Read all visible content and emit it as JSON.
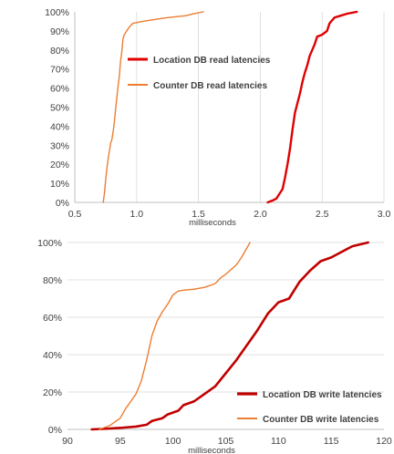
{
  "chart_data": [
    {
      "type": "line",
      "subtype": "cdf",
      "xlabel": "milliseconds",
      "ylabel": "",
      "xlim": [
        0.5,
        3.0
      ],
      "ylim": [
        0,
        1
      ],
      "x_ticks": [
        "0.5",
        "1.0",
        "1.5",
        "2.0",
        "2.5",
        "3.0"
      ],
      "y_ticks": [
        "0%",
        "10%",
        "20%",
        "30%",
        "40%",
        "50%",
        "60%",
        "70%",
        "80%",
        "90%",
        "100%"
      ],
      "grid": "vertical",
      "legend_position": "center",
      "series": [
        {
          "name": "Location DB read latencies",
          "color": "#e00000",
          "stroke_width": 2.4,
          "points": [
            [
              2.06,
              0.0
            ],
            [
              2.1,
              0.01
            ],
            [
              2.13,
              0.02
            ],
            [
              2.15,
              0.04
            ],
            [
              2.18,
              0.07
            ],
            [
              2.2,
              0.13
            ],
            [
              2.22,
              0.2
            ],
            [
              2.24,
              0.28
            ],
            [
              2.26,
              0.38
            ],
            [
              2.28,
              0.47
            ],
            [
              2.3,
              0.52
            ],
            [
              2.32,
              0.57
            ],
            [
              2.34,
              0.63
            ],
            [
              2.36,
              0.68
            ],
            [
              2.38,
              0.72
            ],
            [
              2.4,
              0.77
            ],
            [
              2.42,
              0.8
            ],
            [
              2.44,
              0.83
            ],
            [
              2.46,
              0.87
            ],
            [
              2.5,
              0.88
            ],
            [
              2.52,
              0.89
            ],
            [
              2.54,
              0.9
            ],
            [
              2.56,
              0.94
            ],
            [
              2.6,
              0.97
            ],
            [
              2.65,
              0.98
            ],
            [
              2.7,
              0.99
            ],
            [
              2.78,
              1.0
            ]
          ]
        },
        {
          "name": "Counter DB read latencies",
          "color": "#ed7d31",
          "stroke_width": 1.4,
          "points": [
            [
              0.73,
              0.0
            ],
            [
              0.74,
              0.05
            ],
            [
              0.75,
              0.12
            ],
            [
              0.76,
              0.18
            ],
            [
              0.77,
              0.23
            ],
            [
              0.78,
              0.27
            ],
            [
              0.79,
              0.31
            ],
            [
              0.8,
              0.33
            ],
            [
              0.81,
              0.37
            ],
            [
              0.82,
              0.42
            ],
            [
              0.83,
              0.49
            ],
            [
              0.84,
              0.55
            ],
            [
              0.85,
              0.61
            ],
            [
              0.86,
              0.66
            ],
            [
              0.87,
              0.74
            ],
            [
              0.88,
              0.79
            ],
            [
              0.89,
              0.86
            ],
            [
              0.9,
              0.88
            ],
            [
              0.92,
              0.9
            ],
            [
              0.94,
              0.92
            ],
            [
              0.97,
              0.94
            ],
            [
              1.05,
              0.95
            ],
            [
              1.15,
              0.96
            ],
            [
              1.25,
              0.97
            ],
            [
              1.4,
              0.98
            ],
            [
              1.46,
              0.99
            ],
            [
              1.54,
              1.0
            ]
          ]
        }
      ]
    },
    {
      "type": "line",
      "subtype": "cdf",
      "xlabel": "milliseconds",
      "ylabel": "",
      "xlim": [
        90,
        120
      ],
      "ylim": [
        0,
        1
      ],
      "x_ticks": [
        "90",
        "95",
        "100",
        "105",
        "110",
        "115",
        "120"
      ],
      "y_ticks": [
        "0%",
        "20%",
        "40%",
        "60%",
        "80%",
        "100%"
      ],
      "grid": "horizontal",
      "legend_position": "bottom-right",
      "series": [
        {
          "name": "Location DB write latencies",
          "color": "#c00000",
          "stroke_width": 2.6,
          "points": [
            [
              92.3,
              0.0
            ],
            [
              93.5,
              0.003
            ],
            [
              95.0,
              0.008
            ],
            [
              96.5,
              0.015
            ],
            [
              97.5,
              0.025
            ],
            [
              98.0,
              0.045
            ],
            [
              99.0,
              0.06
            ],
            [
              99.5,
              0.08
            ],
            [
              100.5,
              0.1
            ],
            [
              101.0,
              0.13
            ],
            [
              102.0,
              0.15
            ],
            [
              103.0,
              0.19
            ],
            [
              104.0,
              0.23
            ],
            [
              105.0,
              0.3
            ],
            [
              106.0,
              0.37
            ],
            [
              107.0,
              0.45
            ],
            [
              108.0,
              0.53
            ],
            [
              109.0,
              0.62
            ],
            [
              110.0,
              0.68
            ],
            [
              111.0,
              0.7
            ],
            [
              112.0,
              0.79
            ],
            [
              113.0,
              0.85
            ],
            [
              114.0,
              0.9
            ],
            [
              115.0,
              0.92
            ],
            [
              116.0,
              0.95
            ],
            [
              117.0,
              0.98
            ],
            [
              118.5,
              1.0
            ]
          ]
        },
        {
          "name": "Counter DB write latencies",
          "color": "#ed7d31",
          "stroke_width": 1.4,
          "points": [
            [
              93.0,
              0.0
            ],
            [
              94.0,
              0.02
            ],
            [
              95.0,
              0.06
            ],
            [
              95.5,
              0.11
            ],
            [
              96.0,
              0.15
            ],
            [
              96.5,
              0.19
            ],
            [
              97.0,
              0.26
            ],
            [
              97.5,
              0.37
            ],
            [
              98.0,
              0.5
            ],
            [
              98.5,
              0.58
            ],
            [
              99.0,
              0.63
            ],
            [
              99.5,
              0.67
            ],
            [
              100.0,
              0.72
            ],
            [
              100.5,
              0.74
            ],
            [
              101.0,
              0.745
            ],
            [
              102.0,
              0.75
            ],
            [
              103.0,
              0.76
            ],
            [
              104.0,
              0.78
            ],
            [
              104.5,
              0.81
            ],
            [
              105.0,
              0.83
            ],
            [
              106.0,
              0.88
            ],
            [
              106.5,
              0.92
            ],
            [
              107.0,
              0.97
            ],
            [
              107.3,
              1.0
            ]
          ]
        }
      ]
    }
  ]
}
